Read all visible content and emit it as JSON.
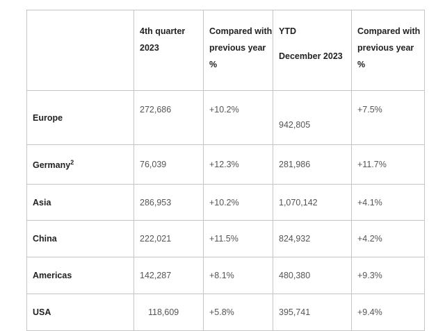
{
  "table": {
    "header": [
      [],
      [
        "4th quarter",
        "2023"
      ],
      [
        "Compared with",
        "previous year",
        "%"
      ],
      [
        "YTD",
        "December 2023"
      ],
      [
        "Compared with",
        "previous year",
        "%"
      ]
    ],
    "rows": [
      {
        "label": "Europe",
        "cells": [
          "272,686",
          "+10.2%",
          "942,805",
          "+7.5%"
        ]
      },
      {
        "label": "Germany",
        "footnote": "2",
        "cells": [
          "76,039",
          "+12.3%",
          "281,986",
          "+11.7%"
        ]
      },
      {
        "label": "Asia",
        "cells": [
          "286,953",
          "+10.2%",
          "1,070,142",
          "+4.1%"
        ]
      },
      {
        "label": "China",
        "cells": [
          "222,021",
          "+11.5%",
          "824,932",
          "+4.2%"
        ]
      },
      {
        "label": "Americas",
        "cells": [
          "142,287",
          "+8.1%",
          "480,380",
          "+9.3%"
        ]
      },
      {
        "label": "USA",
        "cells": [
          "118,609",
          "+5.8%",
          "395,741",
          "+9.4%"
        ]
      }
    ]
  }
}
